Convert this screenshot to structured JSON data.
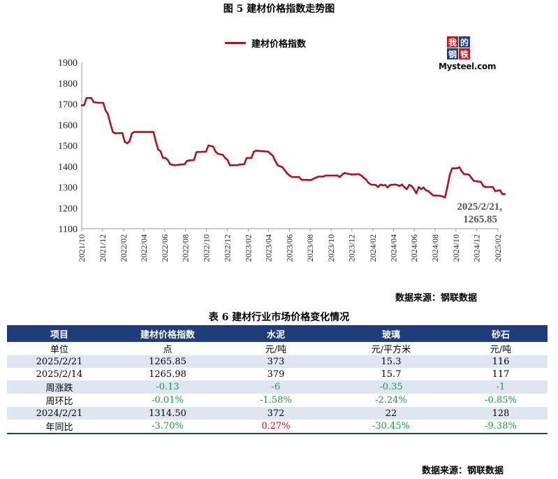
{
  "figure_title": "图 5   建材价格指数走势图",
  "legend_label": "建材价格指数",
  "logo": {
    "blocks": [
      "我",
      "的",
      "钢",
      "铁"
    ],
    "wordmark": "Mysteel.com"
  },
  "annotation": {
    "line1": "2025/2/21,",
    "line2": "1265.85"
  },
  "chart_source": "数据来源：钢联数据",
  "table_title": "表 6 建材行业市场价格变化情况",
  "table_source": "数据来源：钢联数据",
  "colors": {
    "series": "#a8151e",
    "header": "#1f3d7a",
    "band": "#dfe6f2",
    "up": "#d01010",
    "down": "#1b9a3b"
  },
  "chart_data": {
    "type": "line",
    "title": "图 5   建材价格指数走势图",
    "xlabel": "",
    "ylabel": "",
    "ylim": [
      1100,
      1900
    ],
    "yticks": [
      1100,
      1200,
      1300,
      1400,
      1500,
      1600,
      1700,
      1800,
      1900
    ],
    "xlim": [
      "2021/10",
      "2025/02"
    ],
    "xtick_labels": [
      "2021/10",
      "2021/12",
      "2022/02",
      "2022/04",
      "2022/06",
      "2022/08",
      "2022/10",
      "2022/12",
      "2023/02",
      "2023/04",
      "2023/06",
      "2023/08",
      "2023/10",
      "2023/12",
      "2024/02",
      "2024/04",
      "2024/06",
      "2024/08",
      "2024/10",
      "2024/12",
      "2025/02"
    ],
    "grid": false,
    "legend_position": "top-center",
    "series": [
      {
        "name": "建材价格指数",
        "points": [
          [
            "2021/10/01",
            1693
          ],
          [
            "2021/10/08",
            1693
          ],
          [
            "2021/10/15",
            1728
          ],
          [
            "2021/10/29",
            1728
          ],
          [
            "2021/11/05",
            1708
          ],
          [
            "2021/11/19",
            1705
          ],
          [
            "2021/12/03",
            1705
          ],
          [
            "2021/12/10",
            1668
          ],
          [
            "2021/12/17",
            1650
          ],
          [
            "2021/12/24",
            1605
          ],
          [
            "2021/12/31",
            1565
          ],
          [
            "2022/01/07",
            1558
          ],
          [
            "2022/01/28",
            1560
          ],
          [
            "2022/02/04",
            1518
          ],
          [
            "2022/02/11",
            1510
          ],
          [
            "2022/02/18",
            1520
          ],
          [
            "2022/02/25",
            1558
          ],
          [
            "2022/03/04",
            1565
          ],
          [
            "2022/04/29",
            1565
          ],
          [
            "2022/05/06",
            1520
          ],
          [
            "2022/05/13",
            1480
          ],
          [
            "2022/05/20",
            1472
          ],
          [
            "2022/05/27",
            1440
          ],
          [
            "2022/06/03",
            1440
          ],
          [
            "2022/06/10",
            1430
          ],
          [
            "2022/06/17",
            1410
          ],
          [
            "2022/07/01",
            1405
          ],
          [
            "2022/07/15",
            1408
          ],
          [
            "2022/07/29",
            1410
          ],
          [
            "2022/08/05",
            1425
          ],
          [
            "2022/08/12",
            1428
          ],
          [
            "2022/08/26",
            1430
          ],
          [
            "2022/09/02",
            1468
          ],
          [
            "2022/09/30",
            1470
          ],
          [
            "2022/10/07",
            1500
          ],
          [
            "2022/10/21",
            1495
          ],
          [
            "2022/10/28",
            1470
          ],
          [
            "2022/11/04",
            1460
          ],
          [
            "2022/11/18",
            1455
          ],
          [
            "2022/11/25",
            1440
          ],
          [
            "2022/12/02",
            1430
          ],
          [
            "2022/12/09",
            1405
          ],
          [
            "2022/12/30",
            1405
          ],
          [
            "2023/01/06",
            1408
          ],
          [
            "2023/01/20",
            1410
          ],
          [
            "2023/01/27",
            1440
          ],
          [
            "2023/02/10",
            1440
          ],
          [
            "2023/02/17",
            1470
          ],
          [
            "2023/02/24",
            1475
          ],
          [
            "2023/03/31",
            1470
          ],
          [
            "2023/04/07",
            1460
          ],
          [
            "2023/04/14",
            1450
          ],
          [
            "2023/04/21",
            1425
          ],
          [
            "2023/04/28",
            1405
          ],
          [
            "2023/05/05",
            1400
          ],
          [
            "2023/05/12",
            1395
          ],
          [
            "2023/05/19",
            1380
          ],
          [
            "2023/05/26",
            1365
          ],
          [
            "2023/06/02",
            1355
          ],
          [
            "2023/06/09",
            1348
          ],
          [
            "2023/06/30",
            1348
          ],
          [
            "2023/07/07",
            1335
          ],
          [
            "2023/07/28",
            1334
          ],
          [
            "2023/08/04",
            1334
          ],
          [
            "2023/08/11",
            1340
          ],
          [
            "2023/08/18",
            1345
          ],
          [
            "2023/08/25",
            1350
          ],
          [
            "2023/09/08",
            1350
          ],
          [
            "2023/09/15",
            1355
          ],
          [
            "2023/10/20",
            1355
          ],
          [
            "2023/10/27",
            1348
          ],
          [
            "2023/11/03",
            1360
          ],
          [
            "2023/11/10",
            1368
          ],
          [
            "2023/11/17",
            1365
          ],
          [
            "2023/12/01",
            1360
          ],
          [
            "2023/12/22",
            1362
          ],
          [
            "2023/12/29",
            1355
          ],
          [
            "2024/01/05",
            1345
          ],
          [
            "2024/01/12",
            1335
          ],
          [
            "2024/01/19",
            1320
          ],
          [
            "2024/01/26",
            1312
          ],
          [
            "2024/02/09",
            1310
          ],
          [
            "2024/02/16",
            1300
          ],
          [
            "2024/02/23",
            1312
          ],
          [
            "2024/03/01",
            1308
          ],
          [
            "2024/03/08",
            1310
          ],
          [
            "2024/03/15",
            1298
          ],
          [
            "2024/03/22",
            1310
          ],
          [
            "2024/04/05",
            1312
          ],
          [
            "2024/04/12",
            1310
          ],
          [
            "2024/04/19",
            1305
          ],
          [
            "2024/04/26",
            1312
          ],
          [
            "2024/05/03",
            1300
          ],
          [
            "2024/05/10",
            1290
          ],
          [
            "2024/05/17",
            1310
          ],
          [
            "2024/05/24",
            1305
          ],
          [
            "2024/05/31",
            1290
          ],
          [
            "2024/06/07",
            1270
          ],
          [
            "2024/06/14",
            1300
          ],
          [
            "2024/06/21",
            1290
          ],
          [
            "2024/06/28",
            1298
          ],
          [
            "2024/07/05",
            1285
          ],
          [
            "2024/07/12",
            1280
          ],
          [
            "2024/07/19",
            1270
          ],
          [
            "2024/07/26",
            1260
          ],
          [
            "2024/08/16",
            1258
          ],
          [
            "2024/08/23",
            1255
          ],
          [
            "2024/08/30",
            1250
          ],
          [
            "2024/09/06",
            1300
          ],
          [
            "2024/09/13",
            1360
          ],
          [
            "2024/09/20",
            1390
          ],
          [
            "2024/10/04",
            1390
          ],
          [
            "2024/10/11",
            1395
          ],
          [
            "2024/10/18",
            1375
          ],
          [
            "2024/10/25",
            1362
          ],
          [
            "2024/11/08",
            1360
          ],
          [
            "2024/11/15",
            1345
          ],
          [
            "2024/11/22",
            1330
          ],
          [
            "2024/11/29",
            1328
          ],
          [
            "2024/12/13",
            1325
          ],
          [
            "2024/12/20",
            1305
          ],
          [
            "2024/12/27",
            1300
          ],
          [
            "2025/01/17",
            1300
          ],
          [
            "2025/01/24",
            1280
          ],
          [
            "2025/02/07",
            1285
          ],
          [
            "2025/02/14",
            1265.98
          ],
          [
            "2025/02/21",
            1265.85
          ]
        ]
      }
    ]
  },
  "table": {
    "headers": [
      "项目",
      "建材价格指数",
      "水泥",
      "玻璃",
      "砂石"
    ],
    "rows": [
      {
        "cells": [
          {
            "t": "单位",
            "c": "neu"
          },
          {
            "t": "点",
            "c": "neu"
          },
          {
            "t": "元/吨",
            "c": "neu"
          },
          {
            "t": "元/平方米",
            "c": "neu"
          },
          {
            "t": "元/吨",
            "c": "neu"
          }
        ]
      },
      {
        "cells": [
          {
            "t": "2025/2/21",
            "c": "neu"
          },
          {
            "t": "1265.85",
            "c": "neu"
          },
          {
            "t": "373",
            "c": "neu"
          },
          {
            "t": "15.3",
            "c": "neu"
          },
          {
            "t": "116",
            "c": "neu"
          }
        ]
      },
      {
        "cells": [
          {
            "t": "2025/2/14",
            "c": "neu"
          },
          {
            "t": "1265.98",
            "c": "neu"
          },
          {
            "t": "379",
            "c": "neu"
          },
          {
            "t": "15.7",
            "c": "neu"
          },
          {
            "t": "117",
            "c": "neu"
          }
        ]
      },
      {
        "cells": [
          {
            "t": "周涨跌",
            "c": "neu"
          },
          {
            "t": "-0.13",
            "c": "neg"
          },
          {
            "t": "-6",
            "c": "neg"
          },
          {
            "t": "-0.35",
            "c": "neg"
          },
          {
            "t": "-1",
            "c": "neg"
          }
        ]
      },
      {
        "cells": [
          {
            "t": "周环比",
            "c": "neu"
          },
          {
            "t": "-0.01%",
            "c": "neg"
          },
          {
            "t": "-1.58%",
            "c": "neg"
          },
          {
            "t": "-2.24%",
            "c": "neg"
          },
          {
            "t": "-0.85%",
            "c": "neg"
          }
        ]
      },
      {
        "cells": [
          {
            "t": "2024/2/21",
            "c": "neu"
          },
          {
            "t": "1314.50",
            "c": "neu"
          },
          {
            "t": "372",
            "c": "neu"
          },
          {
            "t": "22",
            "c": "neu"
          },
          {
            "t": "128",
            "c": "neu"
          }
        ]
      },
      {
        "cells": [
          {
            "t": "年同比",
            "c": "neu"
          },
          {
            "t": "-3.70%",
            "c": "neg"
          },
          {
            "t": "0.27%",
            "c": "pos"
          },
          {
            "t": "-30.45%",
            "c": "neg"
          },
          {
            "t": "-9.38%",
            "c": "neg"
          }
        ]
      }
    ]
  }
}
